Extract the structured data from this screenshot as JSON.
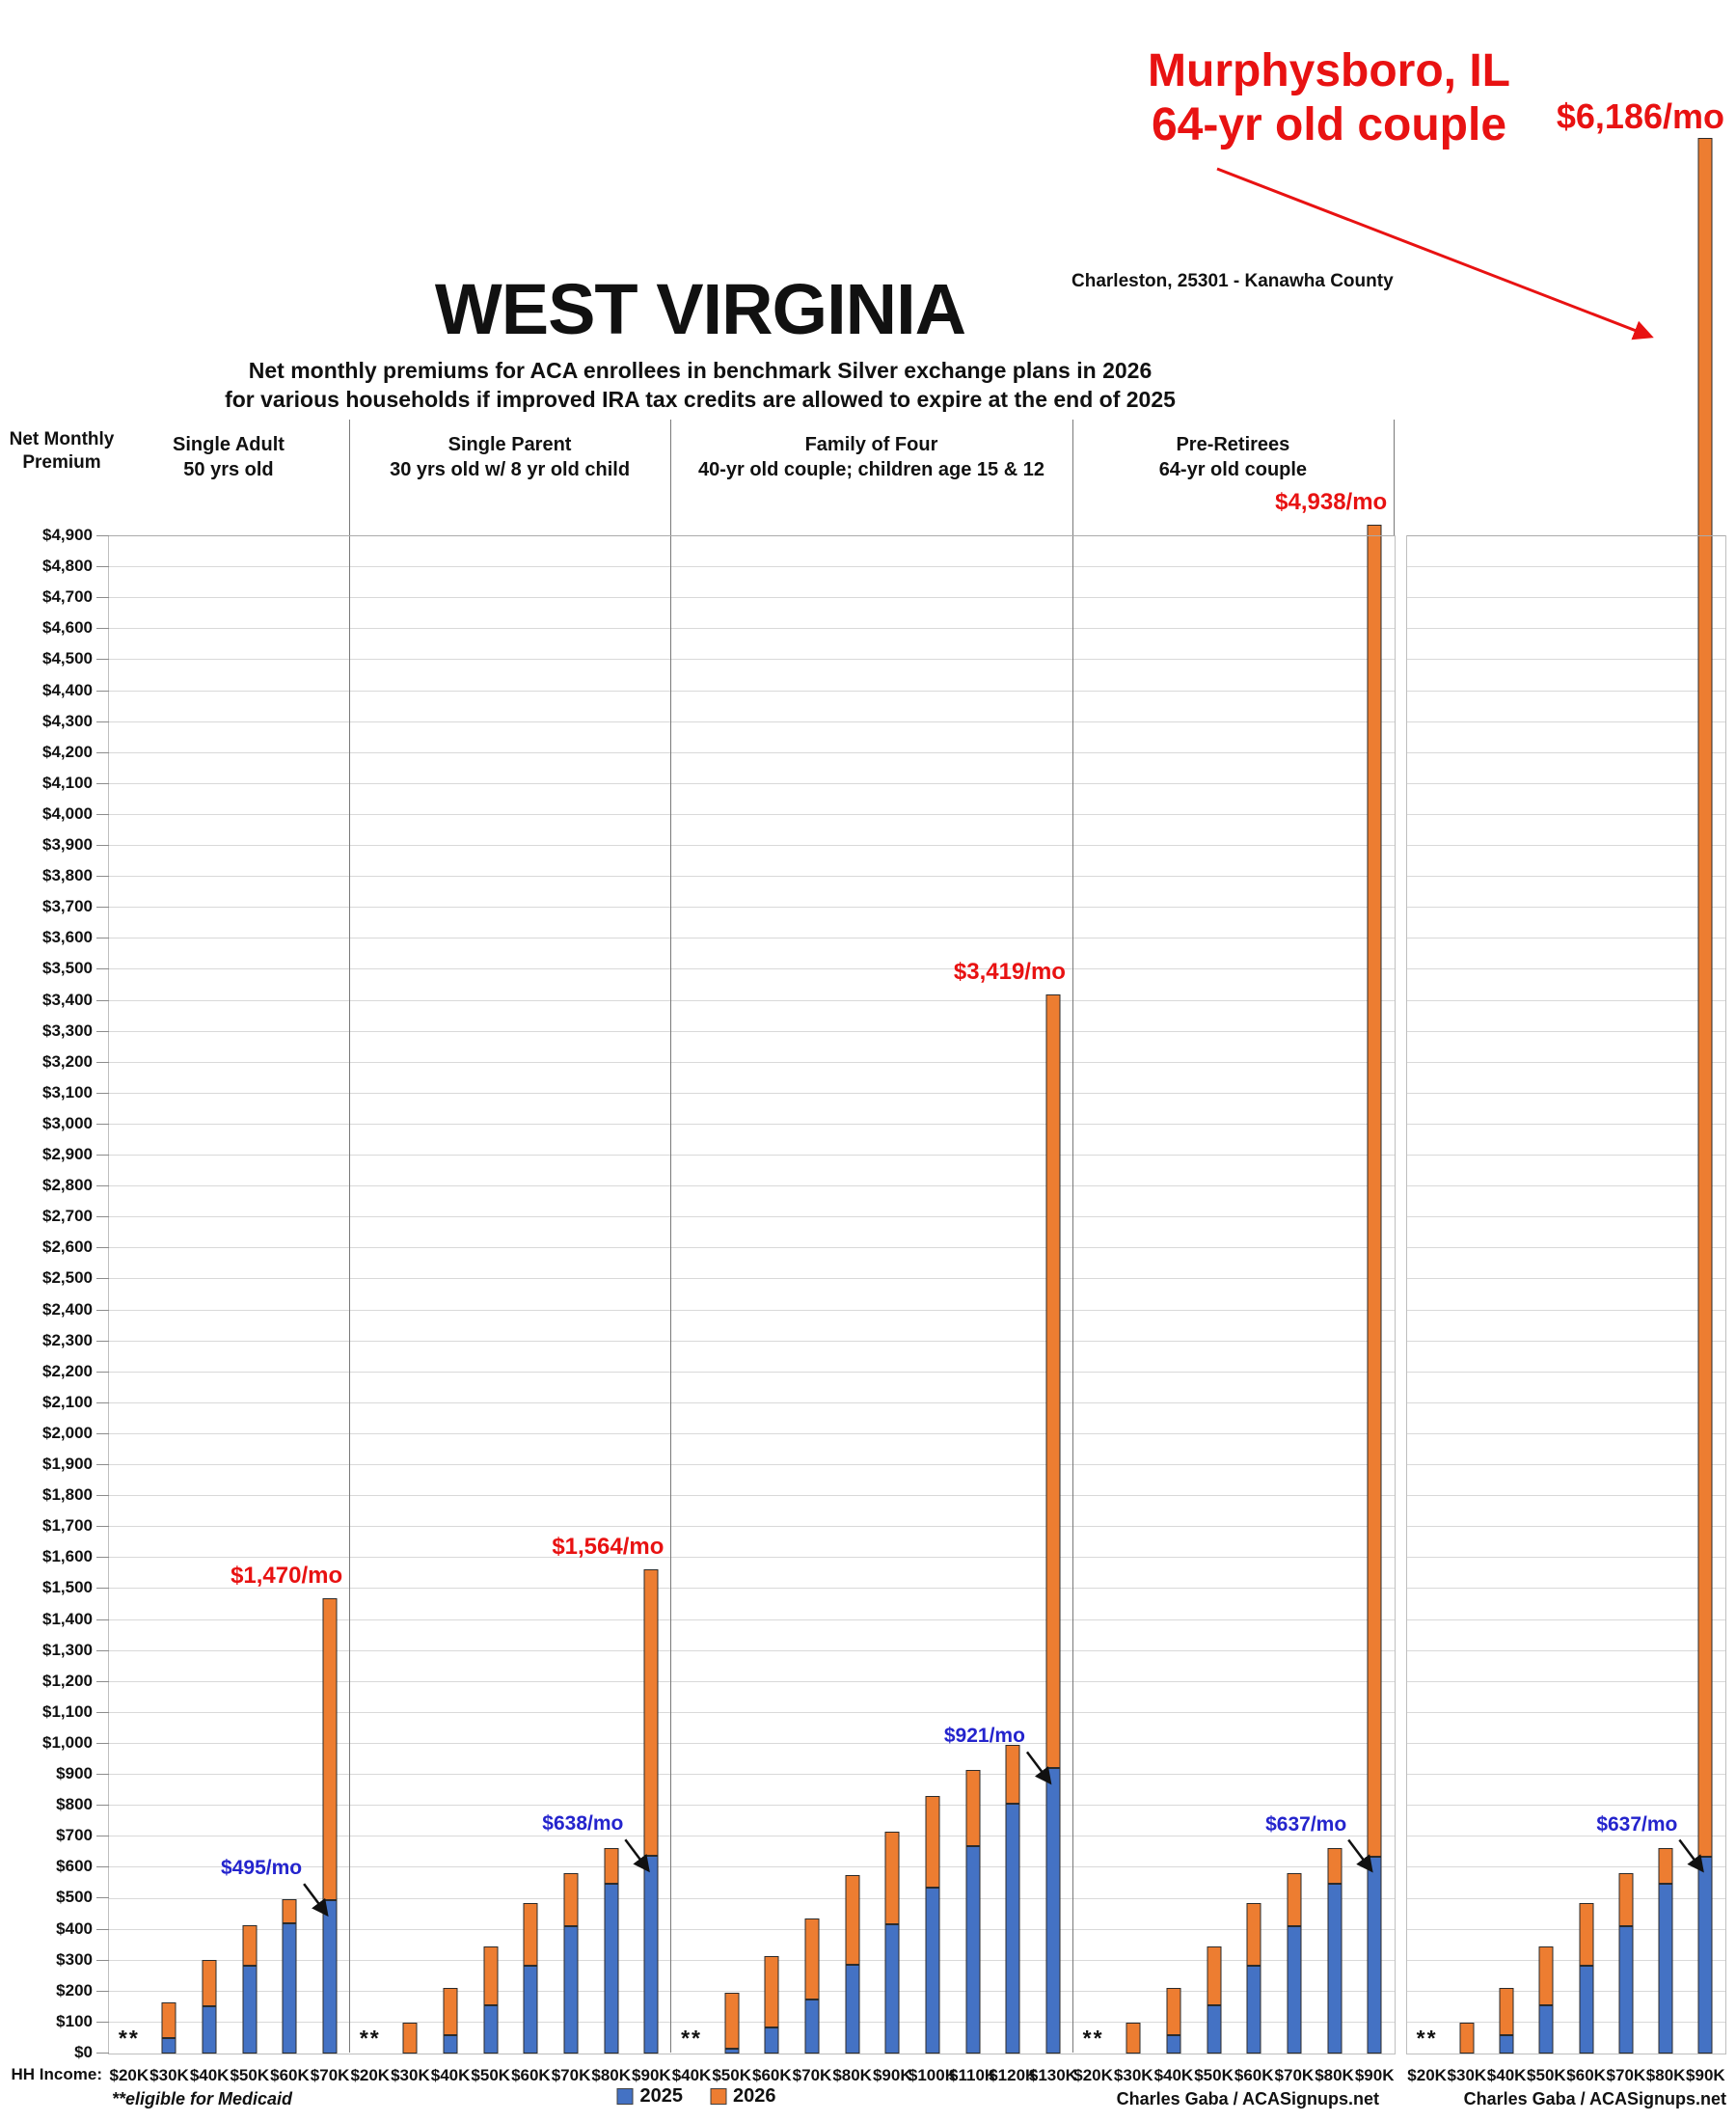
{
  "header": {
    "title": "WEST VIRGINIA",
    "subtitle_line1": "Net monthly premiums for ACA enrollees in benchmark Silver exchange plans in 2026",
    "subtitle_line2": "for various households if improved IRA tax credits are allowed to expire at the end of 2025",
    "location_note": "Charleston, 25301 - Kanawha County",
    "y_axis_title_line1": "Net Monthly",
    "y_axis_title_line2": "Premium",
    "callout": {
      "line1": "Murphysboro, IL",
      "line2": "64-yr old couple",
      "price": "$6,186/mo"
    }
  },
  "axis": {
    "x_title": "HH Income:",
    "y_min": 0,
    "y_max": 4900,
    "y_step": 100,
    "y_tick_prefix": "$"
  },
  "legend": [
    {
      "label": "2025",
      "color": "#4472C4"
    },
    {
      "label": "2026",
      "color": "#ED7D31"
    }
  ],
  "footnotes": {
    "medicaid": "**eligible for Medicaid",
    "credit_main": "Charles Gaba / ACASignups.net",
    "credit_side": "Charles Gaba / ACASignups.net"
  },
  "colors": {
    "bar_2025": "#4472C4",
    "bar_2026": "#ED7D31",
    "annotation_red": "#E81212",
    "annotation_blue": "#2424CD",
    "gridline": "#D9D9D9"
  },
  "chart_data": {
    "type": "bar",
    "unit": "USD per month",
    "ylim": [
      0,
      4900
    ],
    "grid": "horizontal, every $100",
    "legend_position": "bottom center",
    "series_names": [
      "2025",
      "2026"
    ],
    "medicaid_marker": "**",
    "note": "2026 bars (orange) are drawn stacked above 2025 bars (blue); ** = eligible for Medicaid (no premium shown)",
    "main_chart": {
      "groups": [
        {
          "title_line1": "Single Adult",
          "title_line2": "50 yrs old",
          "categories": [
            "$20K",
            "$30K",
            "$40K",
            "$50K",
            "$60K",
            "$70K"
          ],
          "s2025": [
            null,
            50,
            152,
            283,
            422,
            495
          ],
          "s2026": [
            null,
            165,
            301,
            413,
            498,
            1470
          ],
          "annotations": [
            {
              "series": "2025",
              "category": "$70K",
              "value": 495,
              "text": "$495/mo"
            },
            {
              "series": "2026",
              "category": "$70K",
              "value": 1470,
              "text": "$1,470/mo"
            }
          ]
        },
        {
          "title_line1": "Single Parent",
          "title_line2": "30 yrs old w/ 8 yr old child",
          "categories": [
            "$20K",
            "$30K",
            "$40K",
            "$50K",
            "$60K",
            "$70K",
            "$80K",
            "$90K"
          ],
          "s2025": [
            null,
            0,
            58,
            155,
            283,
            410,
            549,
            638
          ],
          "s2026": [
            null,
            100,
            213,
            345,
            486,
            582,
            662,
            1564
          ],
          "annotations": [
            {
              "series": "2025",
              "category": "$90K",
              "value": 638,
              "text": "$638/mo"
            },
            {
              "series": "2026",
              "category": "$90K",
              "value": 1564,
              "text": "$1,564/mo"
            }
          ]
        },
        {
          "title_line1": "Family of Four",
          "title_line2": "40-yr old couple; children age 15 & 12",
          "categories": [
            "$40K",
            "$50K",
            "$60K",
            "$70K",
            "$80K",
            "$90K",
            "$100K",
            "$110K",
            "$120K",
            "$130K"
          ],
          "s2025": [
            null,
            15,
            85,
            175,
            287,
            417,
            537,
            669,
            808,
            921
          ],
          "s2026": [
            null,
            197,
            315,
            437,
            575,
            716,
            831,
            915,
            997,
            3419
          ],
          "annotations": [
            {
              "series": "2025",
              "category": "$130K",
              "value": 921,
              "text": "$921/mo"
            },
            {
              "series": "2026",
              "category": "$130K",
              "value": 3419,
              "text": "$3,419/mo"
            }
          ]
        },
        {
          "title_line1": "Pre-Retirees",
          "title_line2": "64-yr old couple",
          "categories": [
            "$20K",
            "$30K",
            "$40K",
            "$50K",
            "$60K",
            "$70K",
            "$80K",
            "$90K"
          ],
          "s2025": [
            null,
            0,
            58,
            155,
            283,
            410,
            549,
            637
          ],
          "s2026": [
            null,
            100,
            213,
            345,
            486,
            582,
            662,
            4938
          ],
          "annotations": [
            {
              "series": "2025",
              "category": "$90K",
              "value": 637,
              "text": "$637/mo"
            },
            {
              "series": "2026",
              "category": "$90K",
              "value": 4938,
              "text": "$4,938/mo"
            }
          ]
        }
      ]
    },
    "side_chart": {
      "groups": [
        {
          "title_line1": "",
          "title_line2": "",
          "categories": [
            "$20K",
            "$30K",
            "$40K",
            "$50K",
            "$60K",
            "$70K",
            "$80K",
            "$90K"
          ],
          "s2025": [
            null,
            0,
            58,
            155,
            283,
            410,
            549,
            637
          ],
          "s2026": [
            null,
            100,
            213,
            345,
            486,
            582,
            662,
            6186
          ],
          "annotations": [
            {
              "series": "2025",
              "category": "$90K",
              "value": 637,
              "text": "$637/mo"
            }
          ]
        }
      ]
    }
  }
}
